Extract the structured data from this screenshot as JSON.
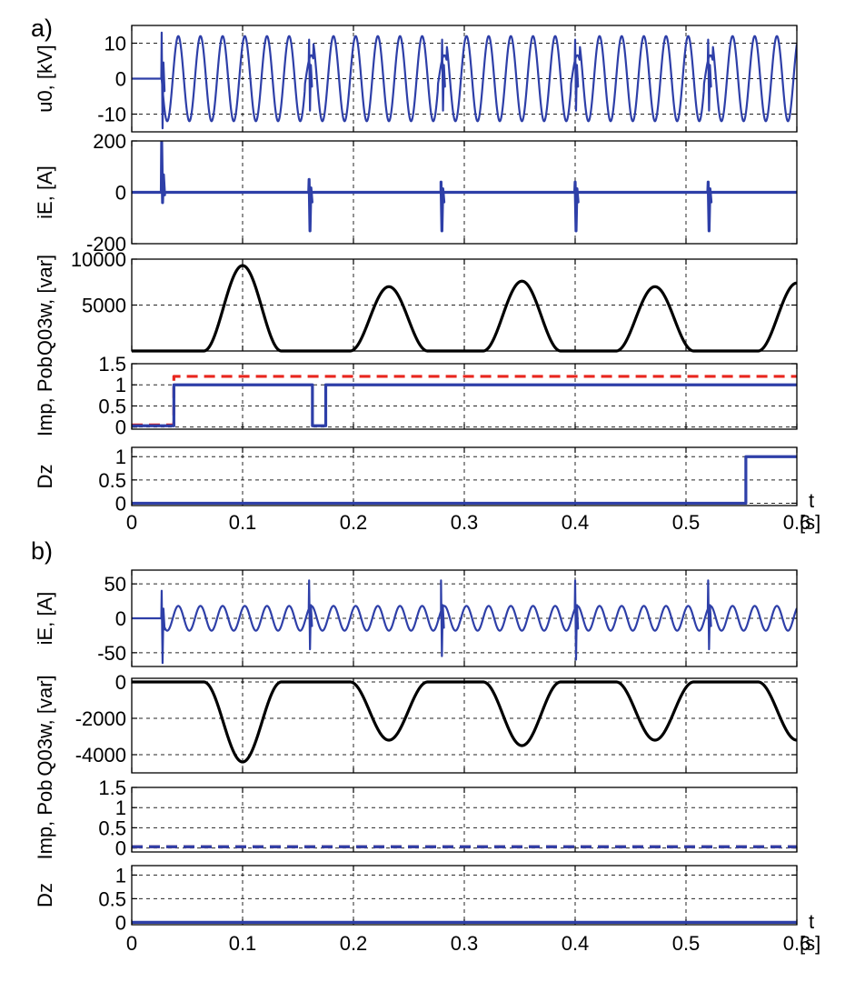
{
  "figure": {
    "x_unit_letter": "t",
    "x_unit": "[s]",
    "x_ticks": [
      0,
      0.1,
      0.2,
      0.3,
      0.4,
      0.5,
      0.6
    ],
    "xlim": [
      0,
      0.6
    ]
  },
  "colors": {
    "blue": "#2E3FA8",
    "black": "#000000",
    "red": "#E8261E"
  },
  "chart_data": [
    {
      "panel": "a)",
      "type": "line",
      "ylabel": "u0, [kV]",
      "ylim": [
        -15,
        15
      ],
      "yticks": [
        10,
        0,
        -10
      ],
      "grid": true,
      "series": [
        {
          "color": "blue",
          "kind": "sine",
          "values": {
            "t_start": 0.027,
            "freq_hz": 50,
            "amplitude": 12,
            "notches": [
              0.16,
              0.28,
              0.4,
              0.52
            ]
          }
        }
      ]
    },
    {
      "panel": "a)",
      "type": "line",
      "ylabel": "iE, [A]",
      "ylim": [
        -200,
        200
      ],
      "yticks": [
        200,
        0,
        -200
      ],
      "grid": true,
      "series": [
        {
          "color": "blue",
          "kind": "spikes",
          "values": {
            "baseline": 0,
            "spikes": [
              {
                "t": 0.027,
                "peak": 195,
                "trough": -40
              },
              {
                "t": 0.16,
                "peak": 50,
                "trough": -150
              },
              {
                "t": 0.279,
                "peak": 40,
                "trough": -150
              },
              {
                "t": 0.4,
                "peak": 40,
                "trough": -150
              },
              {
                "t": 0.52,
                "peak": 40,
                "trough": -150
              }
            ]
          }
        }
      ]
    },
    {
      "panel": "a)",
      "type": "line",
      "ylabel": "Q03w, [var]",
      "ylim": [
        0,
        10000
      ],
      "yticks": [
        10000,
        5000
      ],
      "grid": true,
      "series": [
        {
          "color": "black",
          "kind": "bumps",
          "values": {
            "baseline": 0,
            "bumps": [
              {
                "t": 0.1,
                "peak": 9300,
                "width": 0.07
              },
              {
                "t": 0.232,
                "peak": 7000,
                "width": 0.07
              },
              {
                "t": 0.352,
                "peak": 7600,
                "width": 0.07
              },
              {
                "t": 0.472,
                "peak": 7000,
                "width": 0.07
              },
              {
                "t": 0.6,
                "peak": 7400,
                "width": 0.07
              }
            ]
          }
        }
      ]
    },
    {
      "panel": "a)",
      "type": "line",
      "ylabel": "Imp, Pob",
      "ylim": [
        -0.05,
        1.5
      ],
      "yticks": [
        1.5,
        1,
        0.5,
        0
      ],
      "grid": true,
      "series": [
        {
          "color": "red",
          "dashed": true,
          "kind": "step",
          "values": [
            [
              0,
              0.05
            ],
            [
              0.038,
              0.05
            ],
            [
              0.038,
              1.2
            ],
            [
              0.6,
              1.2
            ]
          ]
        },
        {
          "color": "blue",
          "kind": "step",
          "values": [
            [
              0,
              0.03
            ],
            [
              0.038,
              0.03
            ],
            [
              0.038,
              1
            ],
            [
              0.163,
              1
            ],
            [
              0.163,
              0.03
            ],
            [
              0.175,
              0.03
            ],
            [
              0.175,
              1
            ],
            [
              0.6,
              1
            ]
          ]
        }
      ]
    },
    {
      "panel": "a)",
      "type": "line",
      "ylabel": "Dz",
      "ylim": [
        -0.05,
        1.2
      ],
      "yticks": [
        1,
        0.5,
        0
      ],
      "grid": true,
      "series": [
        {
          "color": "blue",
          "kind": "step",
          "values": [
            [
              0,
              0
            ],
            [
              0.554,
              0
            ],
            [
              0.554,
              1
            ],
            [
              0.6,
              1
            ]
          ]
        }
      ]
    },
    {
      "panel": "b)",
      "type": "line",
      "ylabel": "iE, [A]",
      "ylim": [
        -70,
        70
      ],
      "yticks": [
        50,
        0,
        -50
      ],
      "grid": true,
      "series": [
        {
          "color": "blue",
          "kind": "sine",
          "values": {
            "t_start": 0.027,
            "freq_hz": 50,
            "amplitude": 18,
            "spikes": [
              {
                "t": 0.027,
                "peak": 40,
                "trough": -65
              },
              {
                "t": 0.16,
                "peak": 55,
                "trough": -45
              },
              {
                "t": 0.279,
                "peak": 55,
                "trough": -55
              },
              {
                "t": 0.4,
                "peak": 55,
                "trough": -60
              },
              {
                "t": 0.52,
                "peak": 55,
                "trough": -45
              }
            ]
          }
        }
      ]
    },
    {
      "panel": "b)",
      "type": "line",
      "ylabel": "Q03w, [var]",
      "ylim": [
        -5000,
        200
      ],
      "yticks": [
        0,
        -2000,
        -4000
      ],
      "grid": true,
      "series": [
        {
          "color": "black",
          "kind": "bumps",
          "values": {
            "baseline": 0,
            "bumps": [
              {
                "t": 0.1,
                "peak": -4400,
                "width": 0.07
              },
              {
                "t": 0.232,
                "peak": -3200,
                "width": 0.07
              },
              {
                "t": 0.352,
                "peak": -3500,
                "width": 0.07
              },
              {
                "t": 0.472,
                "peak": -3200,
                "width": 0.07
              },
              {
                "t": 0.6,
                "peak": -3200,
                "width": 0.07
              }
            ]
          }
        }
      ]
    },
    {
      "panel": "b)",
      "type": "line",
      "ylabel": "Imp, Pob",
      "ylim": [
        -0.1,
        1.5
      ],
      "yticks": [
        1.5,
        1,
        0.5,
        0
      ],
      "grid": true,
      "series": [
        {
          "color": "red",
          "dashed": true,
          "kind": "step",
          "values": [
            [
              0,
              0.03
            ],
            [
              0.6,
              0.03
            ]
          ]
        },
        {
          "color": "blue",
          "dashed": true,
          "kind": "step",
          "values": [
            [
              0,
              0.03
            ],
            [
              0.6,
              0.03
            ]
          ]
        }
      ]
    },
    {
      "panel": "b)",
      "type": "line",
      "ylabel": "Dz",
      "ylim": [
        -0.05,
        1.2
      ],
      "yticks": [
        1,
        0.5,
        0
      ],
      "grid": true,
      "series": [
        {
          "color": "blue",
          "kind": "step",
          "values": [
            [
              0,
              0
            ],
            [
              0.6,
              0
            ]
          ]
        }
      ]
    }
  ]
}
